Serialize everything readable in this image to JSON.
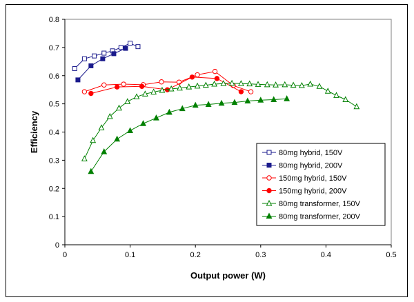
{
  "chart_data": {
    "type": "line",
    "title": "",
    "xlabel": "Output power (W)",
    "ylabel": "Efficiency",
    "xlim": [
      0,
      0.5
    ],
    "ylim": [
      0,
      0.8
    ],
    "xticks": [
      "0",
      "0.1",
      "0.2",
      "0.3",
      "0.4",
      "0.5"
    ],
    "yticks": [
      "0",
      "0.1",
      "0.2",
      "0.3",
      "0.4",
      "0.5",
      "0.6",
      "0.7",
      "0.8"
    ],
    "grid": false,
    "legend_position": "bottom-right",
    "series": [
      {
        "name": "80mg hybrid, 150V",
        "color": "#1a1a8c",
        "marker": "square",
        "filled": false,
        "x": [
          0.015,
          0.03,
          0.045,
          0.06,
          0.073,
          0.086,
          0.1,
          0.112
        ],
        "y": [
          0.625,
          0.66,
          0.67,
          0.68,
          0.688,
          0.7,
          0.715,
          0.703
        ]
      },
      {
        "name": "80mg hybrid, 200V",
        "color": "#1a1a8c",
        "marker": "square",
        "filled": true,
        "x": [
          0.02,
          0.04,
          0.058,
          0.075,
          0.093
        ],
        "y": [
          0.585,
          0.635,
          0.66,
          0.678,
          0.697
        ]
      },
      {
        "name": "150mg hybrid, 150V",
        "color": "#ff0000",
        "marker": "circle",
        "filled": false,
        "x": [
          0.03,
          0.06,
          0.09,
          0.12,
          0.148,
          0.175,
          0.203,
          0.23,
          0.258,
          0.285
        ],
        "y": [
          0.543,
          0.567,
          0.57,
          0.568,
          0.578,
          0.577,
          0.603,
          0.615,
          0.565,
          0.543
        ]
      },
      {
        "name": "150mg hybrid, 200V",
        "color": "#ff0000",
        "marker": "circle",
        "filled": true,
        "x": [
          0.04,
          0.08,
          0.118,
          0.157,
          0.195,
          0.233,
          0.27
        ],
        "y": [
          0.537,
          0.56,
          0.562,
          0.55,
          0.595,
          0.59,
          0.543
        ]
      },
      {
        "name": "80mg transformer, 150V",
        "color": "#008000",
        "marker": "triangle",
        "filled": false,
        "x": [
          0.03,
          0.043,
          0.056,
          0.069,
          0.083,
          0.096,
          0.11,
          0.123,
          0.136,
          0.149,
          0.163,
          0.176,
          0.19,
          0.203,
          0.216,
          0.229,
          0.243,
          0.256,
          0.27,
          0.283,
          0.296,
          0.31,
          0.323,
          0.337,
          0.35,
          0.363,
          0.376,
          0.39,
          0.403,
          0.416,
          0.43,
          0.447
        ],
        "y": [
          0.305,
          0.37,
          0.415,
          0.455,
          0.485,
          0.508,
          0.525,
          0.535,
          0.542,
          0.548,
          0.553,
          0.556,
          0.56,
          0.563,
          0.566,
          0.57,
          0.572,
          0.573,
          0.572,
          0.571,
          0.569,
          0.568,
          0.567,
          0.568,
          0.566,
          0.565,
          0.57,
          0.562,
          0.545,
          0.53,
          0.515,
          0.49
        ]
      },
      {
        "name": "80mg transformer, 200V",
        "color": "#008000",
        "marker": "triangle",
        "filled": true,
        "x": [
          0.04,
          0.06,
          0.08,
          0.1,
          0.12,
          0.14,
          0.16,
          0.18,
          0.2,
          0.22,
          0.24,
          0.26,
          0.28,
          0.3,
          0.32,
          0.34
        ],
        "y": [
          0.26,
          0.33,
          0.375,
          0.405,
          0.43,
          0.45,
          0.47,
          0.483,
          0.495,
          0.498,
          0.502,
          0.505,
          0.51,
          0.513,
          0.515,
          0.518
        ]
      }
    ]
  }
}
